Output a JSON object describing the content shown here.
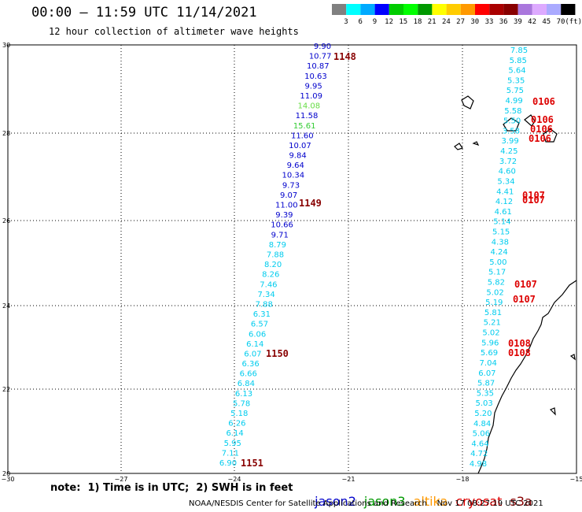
{
  "header": {
    "title": "00:00 – 11:59 UTC 11/14/2021",
    "subtitle": "12 hour collection of altimeter wave heights"
  },
  "colorbar": {
    "colors": [
      "#808080",
      "#00ffff",
      "#00aaff",
      "#0000ff",
      "#00cc00",
      "#00ff00",
      "#009900",
      "#ffff00",
      "#ffcc00",
      "#ff9900",
      "#ff0000",
      "#aa0000",
      "#880000",
      "#aa77dd",
      "#ddaaff",
      "#aaaaff",
      "#000000"
    ],
    "labels": [
      "3",
      "6",
      "9",
      "12",
      "15",
      "18",
      "21",
      "24",
      "27",
      "30",
      "33",
      "36",
      "39",
      "42",
      "45",
      "70",
      "(ft)"
    ]
  },
  "axes": {
    "lat_ticks": [
      "30",
      "28",
      "26",
      "24",
      "22",
      "20"
    ],
    "lon_ticks": [
      "−30",
      "−27",
      "−24",
      "−21",
      "−18",
      "−15"
    ]
  },
  "swh_colors": {
    "cyan": "#00ccee",
    "blue": "#0000cc",
    "green": "#33cc33",
    "light_green": "#66dd44",
    "red_label": "#dd0000",
    "dark_red_label": "#880000"
  },
  "track_labels": [
    {
      "text": "1148",
      "color": "dark"
    },
    {
      "text": "1149",
      "color": "dark"
    },
    {
      "text": "1150",
      "color": "dark"
    },
    {
      "text": "1151",
      "color": "dark"
    },
    {
      "text": "0106",
      "color": "red"
    },
    {
      "text": "0106",
      "color": "red"
    },
    {
      "text": "0106",
      "color": "red"
    },
    {
      "text": "0106",
      "color": "red"
    },
    {
      "text": "0107",
      "color": "red"
    },
    {
      "text": "0107",
      "color": "red"
    },
    {
      "text": "0107",
      "color": "red"
    },
    {
      "text": "0107",
      "color": "red"
    },
    {
      "text": "0108",
      "color": "red"
    },
    {
      "text": "0108",
      "color": "red"
    }
  ],
  "track1148_values": [
    "9.90",
    "10.77",
    "10.87",
    "10.63",
    "9.95",
    "11.09",
    "14.08",
    "11.58",
    "15.61",
    "11.60",
    "10.07",
    "9.84",
    "9.64",
    "10.34",
    "9.73",
    "9.07",
    "11.00",
    "9.39",
    "10.66",
    "9.71",
    "8.79",
    "7.88",
    "8.20",
    "8.26",
    "7.46",
    "7.34",
    "7.88",
    "6.31",
    "6.57",
    "6.06",
    "6.14",
    "6.07",
    "6.36",
    "6.66",
    "6.84",
    "6.13",
    "5.78",
    "5.18",
    "6.26",
    "6.14",
    "5.95",
    "7.11",
    "6.90"
  ],
  "track1148_colors": [
    "blue",
    "blue",
    "blue",
    "blue",
    "blue",
    "blue",
    "green",
    "blue",
    "green",
    "blue",
    "blue",
    "blue",
    "blue",
    "blue",
    "blue",
    "blue",
    "blue",
    "blue",
    "blue",
    "blue",
    "cyan",
    "cyan",
    "cyan",
    "cyan",
    "cyan",
    "cyan",
    "cyan",
    "cyan",
    "cyan",
    "cyan",
    "cyan",
    "cyan",
    "cyan",
    "cyan",
    "cyan",
    "cyan",
    "cyan",
    "cyan",
    "cyan",
    "cyan",
    "cyan",
    "cyan",
    "cyan"
  ],
  "track0106_values": [
    "7.85",
    "5.85",
    "5.64",
    "5.35",
    "5.75",
    "4.99",
    "5.58",
    "5.50",
    "3.58",
    "3.99",
    "4.25",
    "3.72",
    "4.60",
    "5.34",
    "4.41",
    "4.12",
    "4.61",
    "5.14",
    "5.15",
    "4.38",
    "4.24",
    "5.00",
    "5.17",
    "5.82",
    "5.02",
    "5.19",
    "5.81",
    "5.21",
    "5.02",
    "5.96",
    "5.69",
    "7.04",
    "6.07",
    "5.87",
    "5.35",
    "5.03",
    "5.20",
    "4.84",
    "5.06",
    "4.64",
    "4.72",
    "4.98"
  ],
  "footer": {
    "note": "note:  1) Time is in UTC;  2) SWH is in feet",
    "credit": "NOAA/NESDIS Center for Satellite Applications and Research    Nov 17 08:27:19 UTC 2021"
  },
  "legend": [
    {
      "name": "jason2",
      "color": "#0000cc"
    },
    {
      "name": "jason3",
      "color": "#009900"
    },
    {
      "name": "altika",
      "color": "#ff9900"
    },
    {
      "name": "cryosat",
      "color": "#dd0000"
    },
    {
      "name": "s3a",
      "color": "#880000"
    }
  ]
}
